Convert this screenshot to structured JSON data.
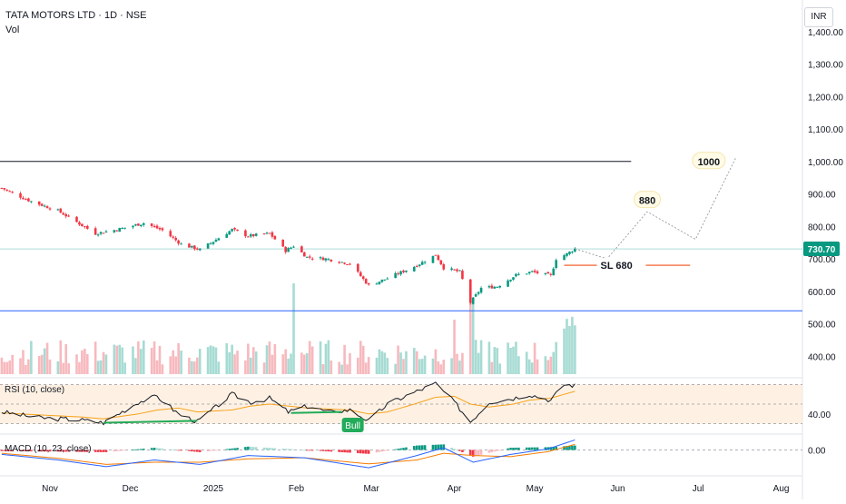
{
  "header": {
    "symbol": "TATA MOTORS LTD · 1D · NSE",
    "vol_label": "Vol",
    "currency": "INR"
  },
  "chart_data": {
    "type": "candlestick",
    "symbol": "TATA MOTORS LTD",
    "interval": "1D",
    "exchange": "NSE",
    "currency": "INR",
    "last_price": 730.7,
    "last_price_label": "730.70",
    "ylim": [
      370,
      1430
    ],
    "y_ticks": [
      400,
      500,
      600,
      700,
      800,
      900,
      1000,
      1100,
      1200,
      1300,
      1400
    ],
    "y_tick_labels": [
      "400.00",
      "500.00",
      "600.00",
      "700.00",
      "800.00",
      "900.00",
      "1,000.00",
      "1,100.00",
      "1,200.00",
      "1,300.00",
      "1,400.00"
    ],
    "x_axis": {
      "labels": [
        "Nov",
        "Dec",
        "2025",
        "Feb",
        "Mar",
        "Apr",
        "May",
        "Jun",
        "Jul",
        "Aug"
      ],
      "label_dates": [
        "2024-11-01",
        "2024-12-01",
        "2025-01-01",
        "2025-02-01",
        "2025-03-01",
        "2025-04-01",
        "2025-05-01",
        "2025-06-01",
        "2025-07-01",
        "2025-08-01"
      ]
    },
    "price_anchors": [
      {
        "date": "2024-10-14",
        "close": 918
      },
      {
        "date": "2024-10-24",
        "close": 880
      },
      {
        "date": "2024-11-04",
        "close": 848
      },
      {
        "date": "2024-11-18",
        "close": 778
      },
      {
        "date": "2024-11-26",
        "close": 790
      },
      {
        "date": "2024-12-06",
        "close": 810
      },
      {
        "date": "2024-12-13",
        "close": 788
      },
      {
        "date": "2024-12-20",
        "close": 745
      },
      {
        "date": "2024-12-27",
        "close": 728
      },
      {
        "date": "2025-01-08",
        "close": 790
      },
      {
        "date": "2025-01-14",
        "close": 770
      },
      {
        "date": "2025-01-22",
        "close": 778
      },
      {
        "date": "2025-01-28",
        "close": 725
      },
      {
        "date": "2025-01-31",
        "close": 740
      },
      {
        "date": "2025-02-05",
        "close": 705
      },
      {
        "date": "2025-02-12",
        "close": 700
      },
      {
        "date": "2025-02-21",
        "close": 685
      },
      {
        "date": "2025-02-28",
        "close": 618
      },
      {
        "date": "2025-03-07",
        "close": 640
      },
      {
        "date": "2025-03-18",
        "close": 680
      },
      {
        "date": "2025-03-25",
        "close": 712
      },
      {
        "date": "2025-03-28",
        "close": 672
      },
      {
        "date": "2025-04-03",
        "close": 660
      },
      {
        "date": "2025-04-07",
        "close": 565
      },
      {
        "date": "2025-04-11",
        "close": 610
      },
      {
        "date": "2025-04-17",
        "close": 615
      },
      {
        "date": "2025-04-24",
        "close": 650
      },
      {
        "date": "2025-04-30",
        "close": 660
      },
      {
        "date": "2025-05-07",
        "close": 648
      },
      {
        "date": "2025-05-09",
        "close": 700
      },
      {
        "date": "2025-05-13",
        "close": 715
      },
      {
        "date": "2025-05-16",
        "close": 731
      }
    ],
    "volume": {
      "label": "Vol"
    },
    "horizontal_lines": [
      {
        "name": "resistance",
        "value": 1000,
        "color": "#131722",
        "start_date": "2024-10-08",
        "end_date": "2025-06-06"
      },
      {
        "name": "support",
        "value": 540,
        "color": "#2962ff",
        "start_date": "2024-10-08",
        "end_date": "2025-08-20"
      },
      {
        "name": "stop-loss",
        "value": 680,
        "color": "#f57c52",
        "start_date": "2025-05-12",
        "end_date": "2025-06-28"
      }
    ],
    "annotations": [
      {
        "name": "stop-loss-label",
        "text": "SL   680",
        "date": "2025-06-02",
        "value": 680
      },
      {
        "name": "target-880-label",
        "text": "880",
        "date": "2025-06-12",
        "value": 880,
        "style": "callout"
      },
      {
        "name": "target-1000-label",
        "text": "1000",
        "date": "2025-07-05",
        "value": 1000,
        "style": "callout"
      }
    ],
    "projection_path": [
      {
        "date": "2025-05-16",
        "value": 731
      },
      {
        "date": "2025-05-28",
        "value": 700
      },
      {
        "date": "2025-06-12",
        "value": 845
      },
      {
        "date": "2025-06-30",
        "value": 760
      },
      {
        "date": "2025-07-15",
        "value": 1010
      }
    ],
    "indicators": [
      {
        "name": "RSI",
        "label": "RSI (10, close)",
        "tick_labels": [
          "40.00"
        ],
        "tick_values": [
          40
        ],
        "bands": {
          "upper": 70,
          "middle": 50,
          "lower": 30
        },
        "ylim": [
          25,
          75
        ],
        "signal_label": "Bull",
        "divergence_lines": [
          {
            "start_date": "2024-11-21",
            "start_value": 31,
            "end_date": "2024-12-26",
            "end_value": 33
          },
          {
            "start_date": "2025-01-30",
            "start_value": 41,
            "end_date": "2025-02-18",
            "end_value": 42
          }
        ],
        "anchors": [
          {
            "date": "2024-10-14",
            "rsi": 42,
            "ma": 41
          },
          {
            "date": "2024-10-28",
            "rsi": 36,
            "ma": 39
          },
          {
            "date": "2024-11-12",
            "rsi": 34,
            "ma": 37
          },
          {
            "date": "2024-11-21",
            "rsi": 31,
            "ma": 35
          },
          {
            "date": "2024-12-04",
            "rsi": 52,
            "ma": 40
          },
          {
            "date": "2024-12-11",
            "rsi": 58,
            "ma": 44
          },
          {
            "date": "2024-12-19",
            "rsi": 40,
            "ma": 46
          },
          {
            "date": "2024-12-26",
            "rsi": 32,
            "ma": 42
          },
          {
            "date": "2025-01-08",
            "rsi": 60,
            "ma": 44
          },
          {
            "date": "2025-01-15",
            "rsi": 52,
            "ma": 48
          },
          {
            "date": "2025-01-22",
            "rsi": 56,
            "ma": 50
          },
          {
            "date": "2025-01-29",
            "rsi": 42,
            "ma": 48
          },
          {
            "date": "2025-02-05",
            "rsi": 48,
            "ma": 46
          },
          {
            "date": "2025-02-13",
            "rsi": 42,
            "ma": 45
          },
          {
            "date": "2025-02-21",
            "rsi": 44,
            "ma": 44
          },
          {
            "date": "2025-02-28",
            "rsi": 33,
            "ma": 40
          },
          {
            "date": "2025-03-07",
            "rsi": 50,
            "ma": 42
          },
          {
            "date": "2025-03-17",
            "rsi": 62,
            "ma": 50
          },
          {
            "date": "2025-03-25",
            "rsi": 71,
            "ma": 57
          },
          {
            "date": "2025-04-01",
            "rsi": 52,
            "ma": 58
          },
          {
            "date": "2025-04-07",
            "rsi": 32,
            "ma": 50
          },
          {
            "date": "2025-04-14",
            "rsi": 52,
            "ma": 47
          },
          {
            "date": "2025-04-23",
            "rsi": 56,
            "ma": 50
          },
          {
            "date": "2025-04-29",
            "rsi": 60,
            "ma": 54
          },
          {
            "date": "2025-05-07",
            "rsi": 54,
            "ma": 56
          },
          {
            "date": "2025-05-12",
            "rsi": 70,
            "ma": 60
          },
          {
            "date": "2025-05-16",
            "rsi": 69,
            "ma": 63
          }
        ]
      },
      {
        "name": "MACD",
        "label": "MACD (10, 23, close)",
        "tick_labels": [
          "0.00"
        ],
        "tick_values": [
          0
        ],
        "ylim": [
          -40,
          22
        ],
        "anchors": [
          {
            "date": "2024-10-14",
            "macd": -8,
            "signal": -6
          },
          {
            "date": "2024-11-04",
            "macd": -18,
            "signal": -15
          },
          {
            "date": "2024-11-22",
            "macd": -30,
            "signal": -26
          },
          {
            "date": "2024-12-10",
            "macd": -18,
            "signal": -22
          },
          {
            "date": "2024-12-27",
            "macd": -26,
            "signal": -22
          },
          {
            "date": "2025-01-14",
            "macd": -10,
            "signal": -16
          },
          {
            "date": "2025-02-04",
            "macd": -14,
            "signal": -14
          },
          {
            "date": "2025-02-28",
            "macd": -32,
            "signal": -25
          },
          {
            "date": "2025-03-18",
            "macd": -10,
            "signal": -18
          },
          {
            "date": "2025-03-28",
            "macd": 4,
            "signal": -6
          },
          {
            "date": "2025-04-08",
            "macd": -22,
            "signal": -10
          },
          {
            "date": "2025-04-22",
            "macd": -8,
            "signal": -12
          },
          {
            "date": "2025-05-06",
            "macd": 2,
            "signal": -3
          },
          {
            "date": "2025-05-16",
            "macd": 18,
            "signal": 10
          }
        ]
      }
    ]
  }
}
